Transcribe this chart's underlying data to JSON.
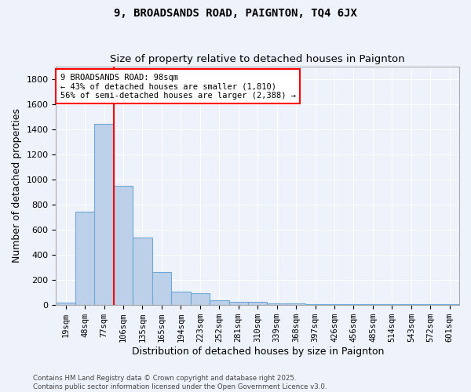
{
  "title": "9, BROADSANDS ROAD, PAIGNTON, TQ4 6JX",
  "subtitle": "Size of property relative to detached houses in Paignton",
  "xlabel": "Distribution of detached houses by size in Paignton",
  "ylabel": "Number of detached properties",
  "categories": [
    "19sqm",
    "48sqm",
    "77sqm",
    "106sqm",
    "135sqm",
    "165sqm",
    "194sqm",
    "223sqm",
    "252sqm",
    "281sqm",
    "310sqm",
    "339sqm",
    "368sqm",
    "397sqm",
    "426sqm",
    "456sqm",
    "485sqm",
    "514sqm",
    "543sqm",
    "572sqm",
    "601sqm"
  ],
  "values": [
    20,
    745,
    1440,
    950,
    535,
    265,
    110,
    95,
    40,
    25,
    25,
    15,
    15,
    10,
    10,
    5,
    5,
    5,
    5,
    5,
    5
  ],
  "bar_color": "#bdd0e9",
  "bar_edge_color": "#6fa8d6",
  "background_color": "#eef2fb",
  "vline_color": "red",
  "annotation_text": "9 BROADSANDS ROAD: 98sqm\n← 43% of detached houses are smaller (1,810)\n56% of semi-detached houses are larger (2,388) →",
  "annotation_edge_color": "red",
  "footer": "Contains HM Land Registry data © Crown copyright and database right 2025.\nContains public sector information licensed under the Open Government Licence v3.0.",
  "ylim": [
    0,
    1900
  ],
  "yticks": [
    0,
    200,
    400,
    600,
    800,
    1000,
    1200,
    1400,
    1600,
    1800
  ]
}
